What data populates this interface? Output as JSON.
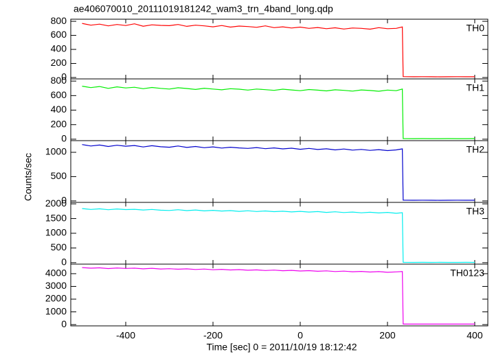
{
  "chart_data": [
    {
      "type": "line",
      "title": "ae406070010_20111019181242_wam3_trn_4band_long.qdp",
      "ylabel": "Counts/sec",
      "x": [
        -500,
        -480,
        -460,
        -440,
        -420,
        -400,
        -380,
        -360,
        -340,
        -320,
        -300,
        -280,
        -260,
        -240,
        -220,
        -200,
        -180,
        -160,
        -140,
        -120,
        -100,
        -80,
        -60,
        -40,
        -20,
        0,
        20,
        40,
        60,
        80,
        100,
        120,
        140,
        160,
        180,
        200,
        220,
        234,
        236,
        260,
        280,
        300,
        320,
        340,
        360,
        380,
        400
      ],
      "xlim": [
        -526,
        430
      ],
      "xticks": [
        -400,
        -200,
        0,
        200,
        400
      ],
      "ylim": [
        -20,
        830
      ],
      "yticks": [
        0,
        200,
        400,
        600,
        800
      ],
      "series": [
        {
          "name": "TH0",
          "color": "#ff0000",
          "values": [
            770,
            745,
            760,
            735,
            755,
            740,
            765,
            730,
            750,
            742,
            738,
            755,
            728,
            745,
            735,
            722,
            740,
            718,
            732,
            725,
            715,
            735,
            710,
            722,
            705,
            718,
            700,
            712,
            695,
            708,
            690,
            705,
            700,
            688,
            710,
            695,
            700,
            720,
            12,
            10,
            11,
            10,
            9,
            10,
            11,
            10,
            10
          ]
        }
      ]
    },
    {
      "type": "line",
      "x": [
        -500,
        -480,
        -460,
        -440,
        -420,
        -400,
        -380,
        -360,
        -340,
        -320,
        -300,
        -280,
        -260,
        -240,
        -220,
        -200,
        -180,
        -160,
        -140,
        -120,
        -100,
        -80,
        -60,
        -40,
        -20,
        0,
        20,
        40,
        60,
        80,
        100,
        120,
        140,
        160,
        180,
        200,
        220,
        234,
        236,
        260,
        280,
        300,
        320,
        340,
        360,
        380,
        400
      ],
      "xlim": [
        -526,
        430
      ],
      "xticks": [
        -400,
        -200,
        0,
        200,
        400
      ],
      "ylim": [
        -20,
        830
      ],
      "yticks": [
        0,
        200,
        400,
        600,
        800
      ],
      "series": [
        {
          "name": "TH1",
          "color": "#00ee00",
          "values": [
            730,
            710,
            725,
            700,
            720,
            705,
            715,
            695,
            712,
            700,
            690,
            708,
            698,
            685,
            702,
            690,
            680,
            695,
            688,
            676,
            690,
            682,
            672,
            688,
            678,
            668,
            684,
            675,
            665,
            680,
            672,
            662,
            678,
            670,
            660,
            676,
            668,
            690,
            8,
            7,
            8,
            7,
            7,
            8,
            7,
            7,
            8
          ]
        }
      ]
    },
    {
      "type": "line",
      "x": [
        -500,
        -480,
        -460,
        -440,
        -420,
        -400,
        -380,
        -360,
        -340,
        -320,
        -300,
        -280,
        -260,
        -240,
        -220,
        -200,
        -180,
        -160,
        -140,
        -120,
        -100,
        -80,
        -60,
        -40,
        -20,
        0,
        20,
        40,
        60,
        80,
        100,
        120,
        140,
        160,
        180,
        200,
        220,
        234,
        236,
        260,
        280,
        300,
        320,
        340,
        360,
        380,
        400
      ],
      "xlim": [
        -526,
        430
      ],
      "xticks": [
        -400,
        -200,
        0,
        200,
        400
      ],
      "ylim": [
        -30,
        1240
      ],
      "yticks": [
        0,
        500,
        1000
      ],
      "series": [
        {
          "name": "TH2",
          "color": "#0000cc",
          "values": [
            1160,
            1130,
            1150,
            1120,
            1145,
            1125,
            1140,
            1110,
            1135,
            1115,
            1105,
            1130,
            1100,
            1120,
            1095,
            1112,
            1088,
            1105,
            1090,
            1080,
            1098,
            1075,
            1090,
            1070,
            1085,
            1062,
            1080,
            1058,
            1072,
            1050,
            1068,
            1045,
            1060,
            1040,
            1055,
            1035,
            1050,
            1070,
            15,
            14,
            15,
            14,
            13,
            14,
            15,
            14,
            14
          ]
        }
      ]
    },
    {
      "type": "line",
      "x": [
        -500,
        -480,
        -460,
        -440,
        -420,
        -400,
        -380,
        -360,
        -340,
        -320,
        -300,
        -280,
        -260,
        -240,
        -220,
        -200,
        -180,
        -160,
        -140,
        -120,
        -100,
        -80,
        -60,
        -40,
        -20,
        0,
        20,
        40,
        60,
        80,
        100,
        120,
        140,
        160,
        180,
        200,
        220,
        234,
        236,
        260,
        280,
        300,
        320,
        340,
        360,
        380,
        400
      ],
      "xlim": [
        -526,
        430
      ],
      "xticks": [
        -400,
        -200,
        0,
        200,
        400
      ],
      "ylim": [
        -50,
        2050
      ],
      "yticks": [
        0,
        500,
        1000,
        1500,
        2000
      ],
      "series": [
        {
          "name": "TH3",
          "color": "#00eeee",
          "values": [
            1840,
            1810,
            1830,
            1800,
            1825,
            1805,
            1815,
            1790,
            1810,
            1785,
            1775,
            1800,
            1770,
            1790,
            1760,
            1780,
            1755,
            1770,
            1745,
            1765,
            1740,
            1758,
            1735,
            1750,
            1725,
            1745,
            1720,
            1738,
            1710,
            1730,
            1705,
            1722,
            1695,
            1715,
            1690,
            1710,
            1680,
            1700,
            10,
            9,
            10,
            9,
            10,
            9,
            9,
            10,
            9
          ]
        }
      ]
    },
    {
      "type": "line",
      "xlabel": "Time [sec] 0 = 2011/10/19 18:12:42",
      "x": [
        -500,
        -480,
        -460,
        -440,
        -420,
        -400,
        -380,
        -360,
        -340,
        -320,
        -300,
        -280,
        -260,
        -240,
        -220,
        -200,
        -180,
        -160,
        -140,
        -120,
        -100,
        -80,
        -60,
        -40,
        -20,
        0,
        20,
        40,
        60,
        80,
        100,
        120,
        140,
        160,
        180,
        200,
        220,
        234,
        236,
        260,
        280,
        300,
        320,
        340,
        360,
        380,
        400
      ],
      "xlim": [
        -526,
        430
      ],
      "xticks": [
        -400,
        -200,
        0,
        200,
        400
      ],
      "ylim": [
        -100,
        4750
      ],
      "yticks": [
        0,
        1000,
        2000,
        3000,
        4000
      ],
      "series": [
        {
          "name": "TH0123",
          "color": "#ee00ee",
          "values": [
            4480,
            4430,
            4460,
            4400,
            4450,
            4410,
            4430,
            4380,
            4420,
            4370,
            4390,
            4350,
            4380,
            4330,
            4360,
            4310,
            4340,
            4290,
            4320,
            4270,
            4300,
            4250,
            4280,
            4230,
            4260,
            4210,
            4240,
            4190,
            4220,
            4170,
            4200,
            4150,
            4180,
            4130,
            4160,
            4110,
            4140,
            4170,
            40,
            38,
            40,
            39,
            38,
            40,
            39,
            38,
            39
          ]
        }
      ]
    }
  ]
}
